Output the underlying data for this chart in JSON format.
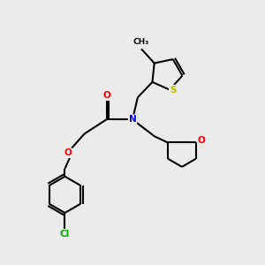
{
  "bg_color": "#ebebeb",
  "bond_color": "#000000",
  "atom_colors": {
    "N": "#0000ff",
    "O": "#ff0000",
    "S": "#bbbb00",
    "Cl": "#00aa00",
    "C": "#000000"
  },
  "lw": 1.5,
  "fontsize": 7.5
}
